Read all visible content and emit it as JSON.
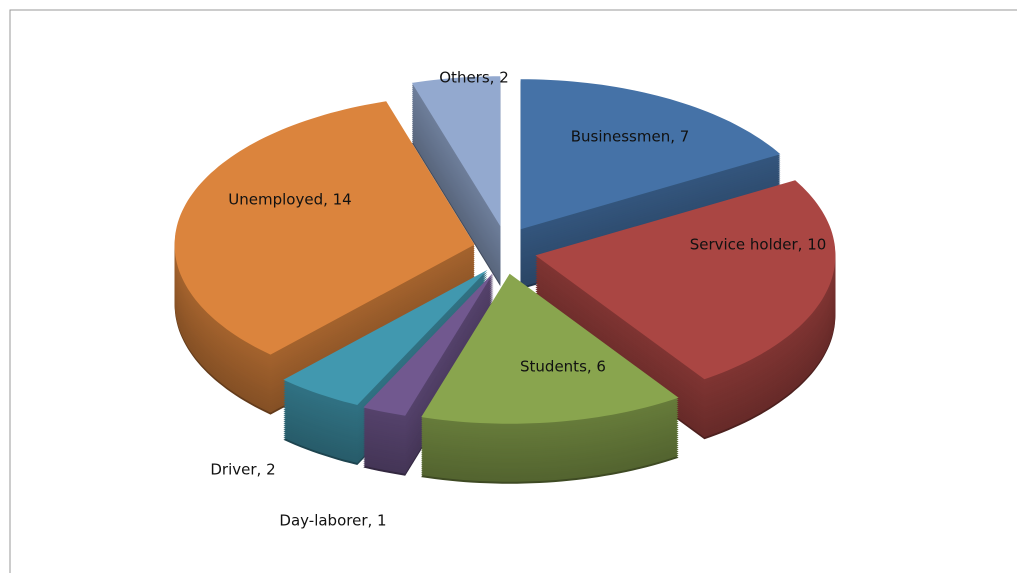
{
  "chart_data": {
    "type": "pie",
    "three_d": true,
    "exploded": true,
    "values": [
      7,
      10,
      6,
      1,
      2,
      14,
      2
    ],
    "value_labels": [
      "Businessmen, 7",
      "Service holder, 10",
      "Students, 6",
      "Day-laborer, 1",
      "Driver, 2",
      "Unemployed, 14",
      "Others, 2"
    ],
    "colors": [
      "#4572a7",
      "#aa4643",
      "#89a54e",
      "#71588f",
      "#4198af",
      "#db843d",
      "#93a9cf"
    ]
  }
}
